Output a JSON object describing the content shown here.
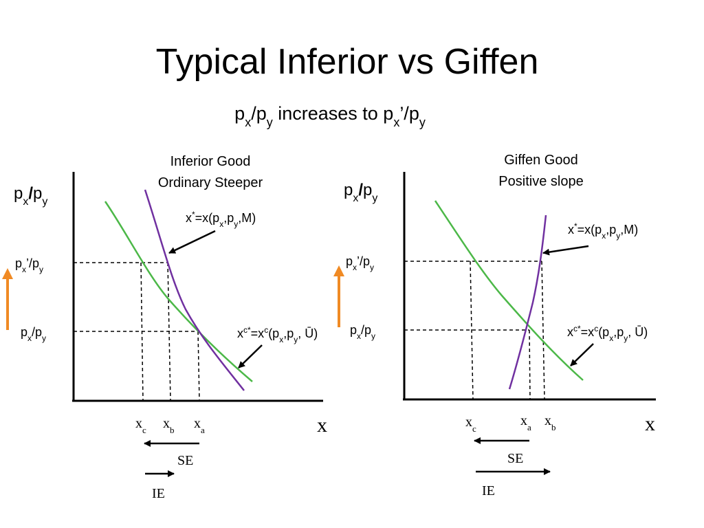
{
  "slide": {
    "title": "Typical Inferior vs Giffen",
    "subtitle": {
      "a": "p",
      "a_sub": "x",
      "b": "/p",
      "b_sub": "y",
      "c": " increases to p",
      "c_sub": "x",
      "d": "’/p",
      "d_sub": "y"
    }
  },
  "colors": {
    "compensated_curve": "#4cb848",
    "demand_curve": "#7030a0",
    "arrow_up": "#f08a24",
    "axis": "#000000"
  },
  "panels": [
    {
      "id": "left",
      "title_line1": "Inferior Good",
      "title_line2": "Ordinary Steeper",
      "y_axis_label": {
        "p": "p",
        "sub1": "x",
        "slash": "/",
        "p2": "p",
        "sub2": "y"
      },
      "price_high": {
        "p": "p",
        "sub1": "x",
        "mid": "’/p",
        "sub2": "y"
      },
      "price_low": {
        "p": "p",
        "sub1": "x",
        "mid": "/p",
        "sub2": "y"
      },
      "demand_label": {
        "a": "x",
        "sup": "*",
        "b": "=x(p",
        "sub1": "x",
        "c": ",p",
        "sub2": "y",
        "d": ",M)"
      },
      "hicks_label": {
        "a": "x",
        "sup1": "c",
        "sup2": "*",
        "b": "=x",
        "sup3": "c",
        "c": "(p",
        "sub1": "x",
        "d": ",p",
        "sub2": "y",
        "e": ", Ū)"
      },
      "ticks": [
        {
          "base": "x",
          "sub": "c"
        },
        {
          "base": "x",
          "sub": "b"
        },
        {
          "base": "x",
          "sub": "a"
        }
      ],
      "x_axis_label": "x",
      "se_label": "SE",
      "ie_label": "IE"
    },
    {
      "id": "right",
      "title_line1": "Giffen Good",
      "title_line2": "Positive slope",
      "y_axis_label": {
        "p": "p",
        "sub1": "x",
        "slash": "/",
        "p2": "p",
        "sub2": "y"
      },
      "price_high": {
        "p": "p",
        "sub1": "x",
        "mid": "’/p",
        "sub2": "y"
      },
      "price_low": {
        "p": "p",
        "sub1": "x",
        "mid": "/p",
        "sub2": "y"
      },
      "demand_label": {
        "a": "x",
        "sup": "*",
        "b": "=x(p",
        "sub1": "x",
        "c": ",p",
        "sub2": "y",
        "d": ",M)"
      },
      "hicks_label": {
        "a": "x",
        "sup1": "c",
        "sup2": "*",
        "b": "=x",
        "sup3": "c",
        "c": "(p",
        "sub1": "x",
        "d": ",p",
        "sub2": "y",
        "e": ", Ū)"
      },
      "ticks": [
        {
          "base": "x",
          "sub": "c"
        },
        {
          "base": "x",
          "sub": "a"
        },
        {
          "base": "x",
          "sub": "b"
        }
      ],
      "x_axis_label": "x",
      "se_label": "SE",
      "ie_label": "IE"
    }
  ]
}
